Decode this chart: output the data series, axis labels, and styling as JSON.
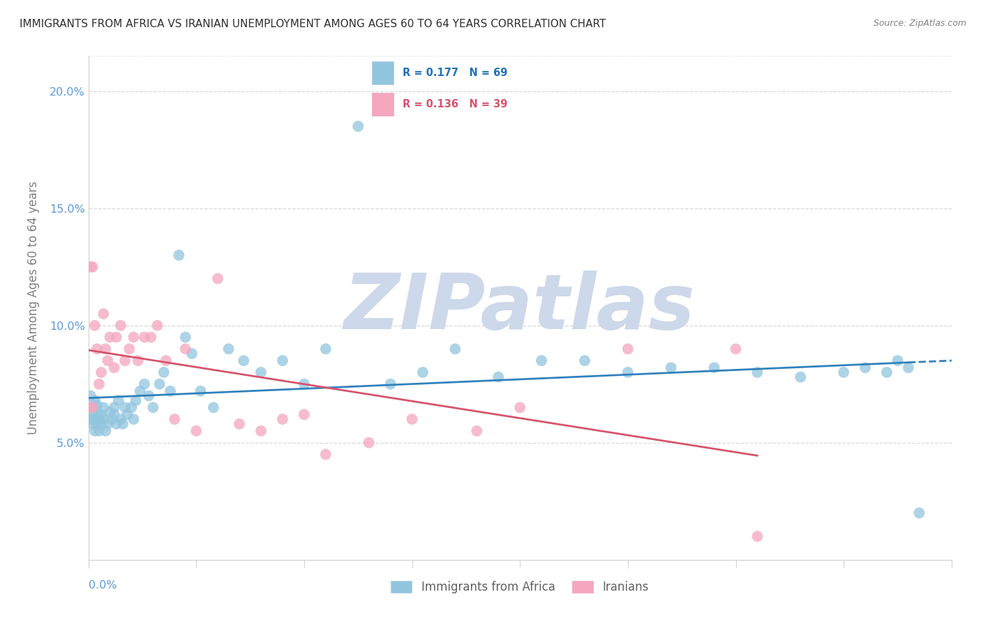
{
  "title": "IMMIGRANTS FROM AFRICA VS IRANIAN UNEMPLOYMENT AMONG AGES 60 TO 64 YEARS CORRELATION CHART",
  "source": "Source: ZipAtlas.com",
  "ylabel": "Unemployment Among Ages 60 to 64 years",
  "xlim": [
    0.0,
    0.4
  ],
  "ylim": [
    0.0,
    0.215
  ],
  "yticks": [
    0.05,
    0.1,
    0.15,
    0.2
  ],
  "ytick_labels": [
    "5.0%",
    "10.0%",
    "15.0%",
    "20.0%"
  ],
  "blue_color": "#92c5de",
  "pink_color": "#f4a6be",
  "blue_line_color": "#3182bd",
  "pink_line_color": "#d6546e",
  "R_blue": 0.177,
  "N_blue": 69,
  "R_pink": 0.136,
  "N_pink": 39,
  "legend_labels": [
    "Immigrants from Africa",
    "Iranians"
  ],
  "blue_scatter_x": [
    0.001,
    0.001,
    0.001,
    0.002,
    0.002,
    0.002,
    0.003,
    0.003,
    0.003,
    0.004,
    0.004,
    0.004,
    0.005,
    0.005,
    0.006,
    0.006,
    0.007,
    0.007,
    0.008,
    0.009,
    0.01,
    0.011,
    0.012,
    0.012,
    0.013,
    0.014,
    0.015,
    0.016,
    0.017,
    0.018,
    0.02,
    0.021,
    0.022,
    0.024,
    0.026,
    0.028,
    0.03,
    0.033,
    0.035,
    0.038,
    0.042,
    0.045,
    0.048,
    0.052,
    0.058,
    0.065,
    0.072,
    0.08,
    0.09,
    0.1,
    0.11,
    0.125,
    0.14,
    0.155,
    0.17,
    0.19,
    0.21,
    0.23,
    0.25,
    0.27,
    0.29,
    0.31,
    0.33,
    0.35,
    0.36,
    0.37,
    0.375,
    0.38,
    0.385
  ],
  "blue_scatter_y": [
    0.065,
    0.06,
    0.07,
    0.058,
    0.062,
    0.065,
    0.055,
    0.06,
    0.068,
    0.058,
    0.062,
    0.066,
    0.055,
    0.06,
    0.058,
    0.062,
    0.06,
    0.065,
    0.055,
    0.058,
    0.063,
    0.06,
    0.062,
    0.065,
    0.058,
    0.068,
    0.06,
    0.058,
    0.065,
    0.062,
    0.065,
    0.06,
    0.068,
    0.072,
    0.075,
    0.07,
    0.065,
    0.075,
    0.08,
    0.072,
    0.13,
    0.095,
    0.088,
    0.072,
    0.065,
    0.09,
    0.085,
    0.08,
    0.085,
    0.075,
    0.09,
    0.185,
    0.075,
    0.08,
    0.09,
    0.078,
    0.085,
    0.085,
    0.08,
    0.082,
    0.082,
    0.08,
    0.078,
    0.08,
    0.082,
    0.08,
    0.085,
    0.082,
    0.02
  ],
  "pink_scatter_x": [
    0.001,
    0.001,
    0.002,
    0.002,
    0.003,
    0.004,
    0.005,
    0.006,
    0.007,
    0.008,
    0.009,
    0.01,
    0.012,
    0.013,
    0.015,
    0.017,
    0.019,
    0.021,
    0.023,
    0.026,
    0.029,
    0.032,
    0.036,
    0.04,
    0.045,
    0.05,
    0.06,
    0.07,
    0.08,
    0.09,
    0.1,
    0.11,
    0.13,
    0.15,
    0.18,
    0.2,
    0.25,
    0.3,
    0.31
  ],
  "pink_scatter_y": [
    0.065,
    0.125,
    0.065,
    0.125,
    0.1,
    0.09,
    0.075,
    0.08,
    0.105,
    0.09,
    0.085,
    0.095,
    0.082,
    0.095,
    0.1,
    0.085,
    0.09,
    0.095,
    0.085,
    0.095,
    0.095,
    0.1,
    0.085,
    0.06,
    0.09,
    0.055,
    0.12,
    0.058,
    0.055,
    0.06,
    0.062,
    0.045,
    0.05,
    0.06,
    0.055,
    0.065,
    0.09,
    0.09,
    0.01
  ],
  "watermark": "ZIPatlas",
  "watermark_color": "#cdd8ea"
}
